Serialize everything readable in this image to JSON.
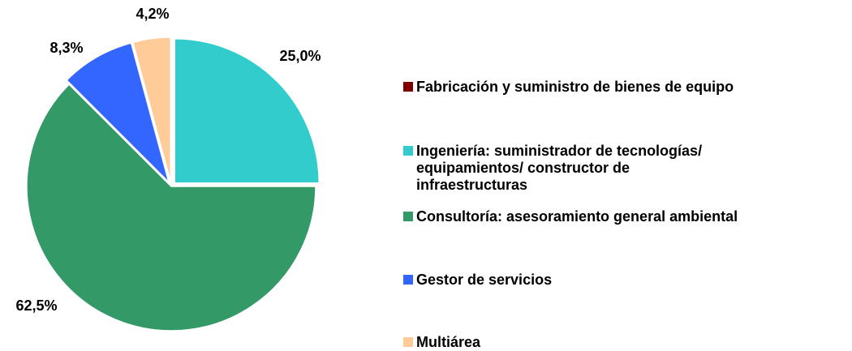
{
  "chart_data": {
    "type": "pie",
    "categories": [
      "Fabricación y suministro de bienes de equipo",
      "Ingeniería: suministrador de tecnologías/ equipamientos/ constructor de infraestructuras",
      "Consultoría: asesoramiento general ambiental",
      "Gestor de servicios",
      "Multiárea"
    ],
    "values": [
      0,
      25.0,
      62.5,
      8.3,
      4.2
    ],
    "value_labels": [
      null,
      "25,0%",
      "62,5%",
      "8,3%",
      "4,2%"
    ],
    "colors": [
      "#800000",
      "#33cccc",
      "#339966",
      "#3366ff",
      "#ffcc99"
    ],
    "legend": "right"
  }
}
